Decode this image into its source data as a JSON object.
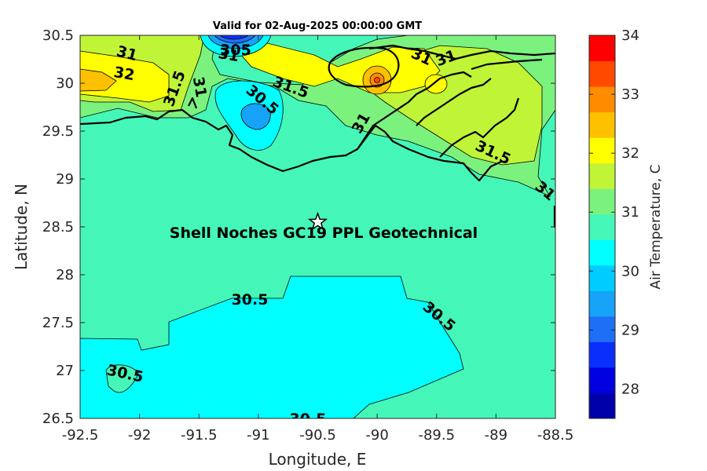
{
  "title": "Valid for 02-Aug-2025 00:00:00 GMT",
  "x_axis": {
    "label": "Longitude, E",
    "ticks": [
      "-92.5",
      "-92",
      "-91.5",
      "-91",
      "-90.5",
      "-90",
      "-89.5",
      "-89",
      "-88.5"
    ]
  },
  "y_axis": {
    "label": "Latitude, N",
    "ticks": [
      "26.5",
      "27",
      "27.5",
      "28",
      "28.5",
      "29",
      "29.5",
      "30",
      "30.5"
    ]
  },
  "colorbar": {
    "label": "Air Temperature, C",
    "range": [
      27.5,
      34
    ],
    "ticks": [
      "28",
      "29",
      "30",
      "31",
      "32",
      "33",
      "34"
    ],
    "colors": [
      "#0000aa",
      "#0000e0",
      "#0b2ffb",
      "#1f6ff6",
      "#16a3f8",
      "#00ccff",
      "#00ffff",
      "#44f7b8",
      "#7bf27e",
      "#c0f437",
      "#ffff00",
      "#ffc000",
      "#ff8c00",
      "#ff4a00",
      "#ff0000"
    ]
  },
  "site": {
    "label": "Shell Noches   GC19 PPL  Geotechnical",
    "lon": -90.5,
    "lat": 28.55
  },
  "contour_labels": [
    "31",
    "32",
    "31.5",
    "31",
    "305",
    "31",
    "30.5",
    "31.5",
    "31",
    "31",
    "31",
    "31.5",
    "31",
    "30.5",
    "30.5",
    "30.5",
    "30.5"
  ],
  "field": {
    "background_color": "#44f7b8",
    "regions": [
      {
        "level": "30.0-30.5",
        "color": "#00ffff"
      },
      {
        "level": "31.0-31.5",
        "color": "#7bf27e"
      },
      {
        "level": "31.5-32.0",
        "color": "#c0f437"
      },
      {
        "level": "32.0-32.5",
        "color": "#ffff00"
      },
      {
        "level": "32.5-33.0",
        "color": "#ffc000"
      }
    ]
  }
}
